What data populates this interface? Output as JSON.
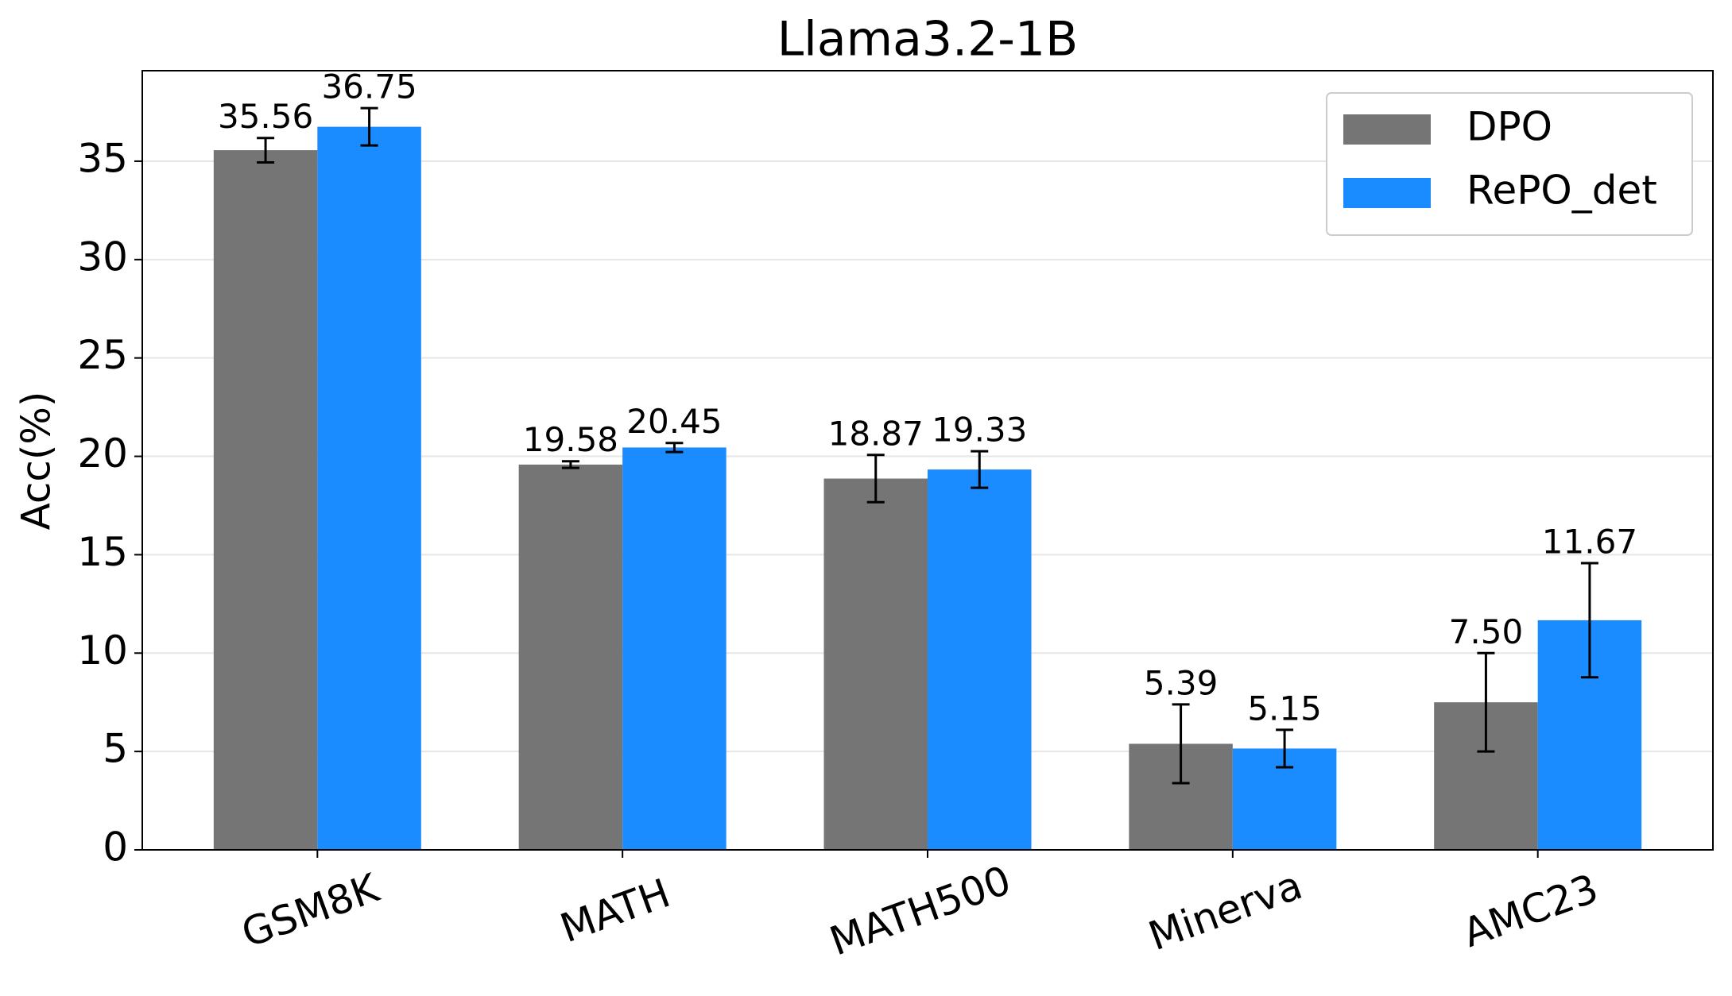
{
  "chart_data": {
    "type": "bar",
    "title": "Llama3.2-1B",
    "y_label": "Acc(%)",
    "categories": [
      "GSM8K",
      "MATH",
      "MATH500",
      "Minerva",
      "AMC23"
    ],
    "series": [
      {
        "name": "DPO",
        "color": "#757575",
        "values": [
          35.56,
          19.58,
          18.87,
          5.39,
          7.5
        ],
        "value_labels": [
          "35.56",
          "19.58",
          "18.87",
          "5.39",
          "7.50"
        ],
        "errors": [
          0.62,
          0.17,
          1.2,
          2.0,
          2.5
        ]
      },
      {
        "name": "RePO_det",
        "color": "#1a8cff",
        "values": [
          36.75,
          20.45,
          19.33,
          5.15,
          11.67
        ],
        "value_labels": [
          "36.75",
          "20.45",
          "19.33",
          "5.15",
          "11.67"
        ],
        "errors": [
          0.95,
          0.23,
          0.93,
          0.95,
          2.9
        ]
      }
    ],
    "ylim": [
      0,
      39.6
    ],
    "yticks": [
      0,
      5,
      10,
      15,
      20,
      25,
      30,
      35
    ],
    "grid": true,
    "legend": "upper right"
  }
}
